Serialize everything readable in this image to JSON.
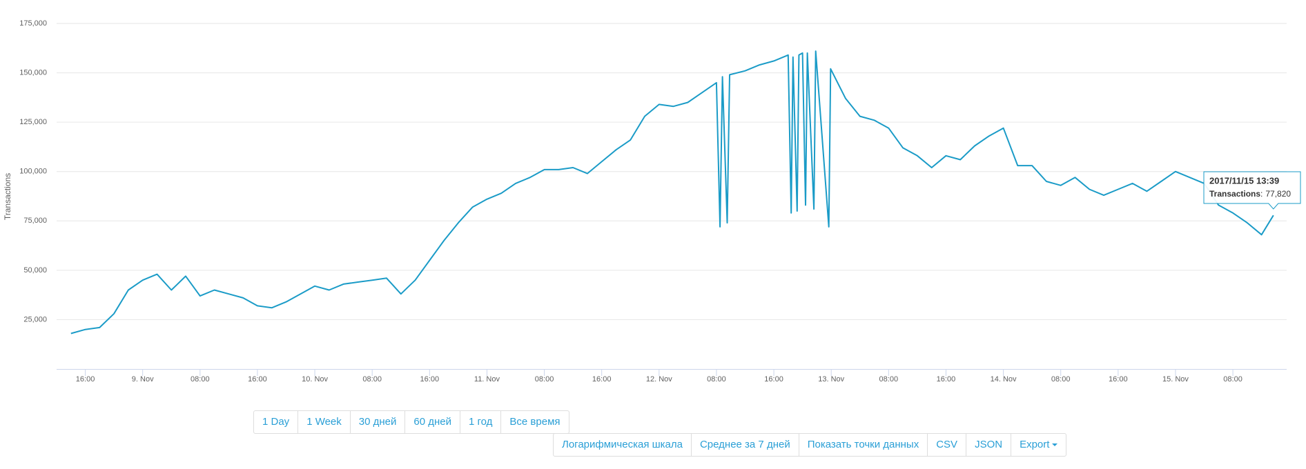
{
  "chart_data": {
    "type": "line",
    "y_label": "Transactions",
    "color": "#1a9bc7",
    "grid": true,
    "x": [
      "2017-11-08T14:00",
      "2017-11-08T16:00",
      "2017-11-08T18:00",
      "2017-11-08T20:00",
      "2017-11-08T22:00",
      "2017-11-09T00:00",
      "2017-11-09T02:00",
      "2017-11-09T04:00",
      "2017-11-09T06:00",
      "2017-11-09T08:00",
      "2017-11-09T10:00",
      "2017-11-09T12:00",
      "2017-11-09T14:00",
      "2017-11-09T16:00",
      "2017-11-09T18:00",
      "2017-11-09T20:00",
      "2017-11-09T22:00",
      "2017-11-10T00:00",
      "2017-11-10T02:00",
      "2017-11-10T04:00",
      "2017-11-10T06:00",
      "2017-11-10T08:00",
      "2017-11-10T10:00",
      "2017-11-10T12:00",
      "2017-11-10T14:00",
      "2017-11-10T16:00",
      "2017-11-10T18:00",
      "2017-11-10T20:00",
      "2017-11-10T22:00",
      "2017-11-11T00:00",
      "2017-11-11T02:00",
      "2017-11-11T04:00",
      "2017-11-11T06:00",
      "2017-11-11T08:00",
      "2017-11-11T10:00",
      "2017-11-11T12:00",
      "2017-11-11T14:00",
      "2017-11-11T16:00",
      "2017-11-11T18:00",
      "2017-11-11T20:00",
      "2017-11-11T22:00",
      "2017-11-12T00:00",
      "2017-11-12T02:00",
      "2017-11-12T04:00",
      "2017-11-12T06:00",
      "2017-11-12T08:00",
      "2017-11-12T08:30",
      "2017-11-12T08:50",
      "2017-11-12T09:30",
      "2017-11-12T09:50",
      "2017-11-12T12:00",
      "2017-11-12T14:00",
      "2017-11-12T16:00",
      "2017-11-12T18:00",
      "2017-11-12T18:25",
      "2017-11-12T18:40",
      "2017-11-12T19:15",
      "2017-11-12T19:30",
      "2017-11-12T20:00",
      "2017-11-12T20:25",
      "2017-11-12T20:40",
      "2017-11-12T21:35",
      "2017-11-12T21:50",
      "2017-11-12T23:40",
      "2017-11-12T23:55",
      "2017-11-13T02:00",
      "2017-11-13T04:00",
      "2017-11-13T06:00",
      "2017-11-13T08:00",
      "2017-11-13T10:00",
      "2017-11-13T12:00",
      "2017-11-13T14:00",
      "2017-11-13T16:00",
      "2017-11-13T18:00",
      "2017-11-13T20:00",
      "2017-11-13T22:00",
      "2017-11-14T00:00",
      "2017-11-14T02:00",
      "2017-11-14T04:00",
      "2017-11-14T06:00",
      "2017-11-14T08:00",
      "2017-11-14T10:00",
      "2017-11-14T12:00",
      "2017-11-14T14:00",
      "2017-11-14T16:00",
      "2017-11-14T18:00",
      "2017-11-14T20:00",
      "2017-11-14T22:00",
      "2017-11-15T00:00",
      "2017-11-15T02:00",
      "2017-11-15T04:00",
      "2017-11-15T06:00",
      "2017-11-15T08:00",
      "2017-11-15T10:00",
      "2017-11-15T12:00",
      "2017-11-15T13:39"
    ],
    "values": [
      18000,
      20000,
      21000,
      28000,
      40000,
      45000,
      48000,
      40000,
      47000,
      37000,
      40000,
      38000,
      36000,
      32000,
      31000,
      34000,
      38000,
      42000,
      40000,
      43000,
      44000,
      45000,
      46000,
      38000,
      45000,
      55000,
      65000,
      74000,
      82000,
      86000,
      89000,
      94000,
      97000,
      101000,
      101000,
      102000,
      99000,
      105000,
      111000,
      116000,
      128000,
      134000,
      133000,
      135000,
      140000,
      145000,
      72000,
      148000,
      74000,
      149000,
      151000,
      154000,
      156000,
      159000,
      79000,
      158000,
      80000,
      159000,
      160000,
      83000,
      160000,
      81000,
      161000,
      72000,
      152000,
      137000,
      128000,
      126000,
      122000,
      112000,
      108000,
      102000,
      108000,
      106000,
      113000,
      118000,
      122000,
      103000,
      103000,
      95000,
      93000,
      97000,
      91000,
      88000,
      91000,
      94000,
      90000,
      95000,
      100000,
      97000,
      94000,
      83000,
      79000,
      74000,
      68000,
      77820
    ],
    "xlim": [
      "2017-11-08T12:00",
      "2017-11-15T15:30"
    ],
    "xticks": [
      {
        "value": "2017-11-08T16:00",
        "label": "16:00"
      },
      {
        "value": "2017-11-09T00:00",
        "label": "9. Nov"
      },
      {
        "value": "2017-11-09T08:00",
        "label": "08:00"
      },
      {
        "value": "2017-11-09T16:00",
        "label": "16:00"
      },
      {
        "value": "2017-11-10T00:00",
        "label": "10. Nov"
      },
      {
        "value": "2017-11-10T08:00",
        "label": "08:00"
      },
      {
        "value": "2017-11-10T16:00",
        "label": "16:00"
      },
      {
        "value": "2017-11-11T00:00",
        "label": "11. Nov"
      },
      {
        "value": "2017-11-11T08:00",
        "label": "08:00"
      },
      {
        "value": "2017-11-11T16:00",
        "label": "16:00"
      },
      {
        "value": "2017-11-12T00:00",
        "label": "12. Nov"
      },
      {
        "value": "2017-11-12T08:00",
        "label": "08:00"
      },
      {
        "value": "2017-11-12T16:00",
        "label": "16:00"
      },
      {
        "value": "2017-11-13T00:00",
        "label": "13. Nov"
      },
      {
        "value": "2017-11-13T08:00",
        "label": "08:00"
      },
      {
        "value": "2017-11-13T16:00",
        "label": "16:00"
      },
      {
        "value": "2017-11-14T00:00",
        "label": "14. Nov"
      },
      {
        "value": "2017-11-14T08:00",
        "label": "08:00"
      },
      {
        "value": "2017-11-14T16:00",
        "label": "16:00"
      },
      {
        "value": "2017-11-15T00:00",
        "label": "15. Nov"
      },
      {
        "value": "2017-11-15T08:00",
        "label": "08:00"
      }
    ],
    "ylim": [
      0,
      175000
    ],
    "yticks": [
      {
        "value": 25000,
        "label": "25,000"
      },
      {
        "value": 50000,
        "label": "50,000"
      },
      {
        "value": 75000,
        "label": "75,000"
      },
      {
        "value": 100000,
        "label": "100,000"
      },
      {
        "value": 125000,
        "label": "125,000"
      },
      {
        "value": 150000,
        "label": "150,000"
      },
      {
        "value": 175000,
        "label": "175,000"
      }
    ],
    "tooltip": {
      "title": "2017/11/15 13:39",
      "series_label": "Transactions",
      "separator": ":",
      "value": 77820,
      "value_label": "77,820"
    }
  },
  "range_buttons": [
    "1 Day",
    "1 Week",
    "30 дней",
    "60 дней",
    "1 год",
    "Все время"
  ],
  "option_buttons": [
    "Логарифмическая шкала",
    "Среднее за 7 дней",
    "Показать точки данных",
    "CSV",
    "JSON",
    "Export"
  ]
}
